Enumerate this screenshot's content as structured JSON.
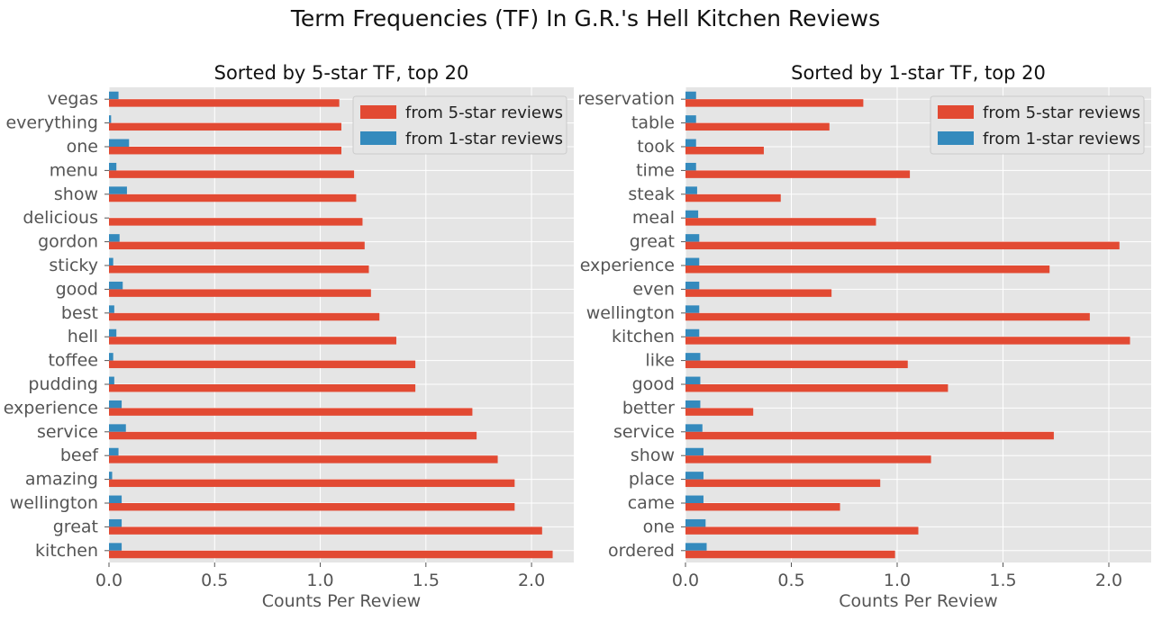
{
  "title": "Term Frequencies (TF) In G.R.'s Hell Kitchen Reviews",
  "colors": {
    "five_star": "#E24A33",
    "one_star": "#348ABD",
    "panel_bg": "#E5E5E5",
    "grid": "#FFFFFF",
    "text": "#555555"
  },
  "chart_data": [
    {
      "type": "bar",
      "orientation": "horizontal",
      "title": "Sorted by 5-star TF, top 20",
      "xlabel": "Counts Per Review",
      "ylabel": "",
      "xlim": [
        0,
        2.2
      ],
      "xticks": [
        "0.0",
        "0.5",
        "1.0",
        "1.5",
        "2.0"
      ],
      "grid": true,
      "legend_position": "upper right",
      "categories": [
        "vegas",
        "everything",
        "one",
        "menu",
        "show",
        "delicious",
        "gordon",
        "sticky",
        "good",
        "best",
        "hell",
        "toffee",
        "pudding",
        "experience",
        "service",
        "beef",
        "amazing",
        "wellington",
        "great",
        "kitchen"
      ],
      "series": [
        {
          "name": "from 5-star reviews",
          "values": [
            1.09,
            1.1,
            1.1,
            1.16,
            1.17,
            1.2,
            1.21,
            1.23,
            1.24,
            1.28,
            1.36,
            1.45,
            1.45,
            1.72,
            1.74,
            1.84,
            1.92,
            1.92,
            2.05,
            2.1
          ]
        },
        {
          "name": "from 1-star reviews",
          "values": [
            0.045,
            0.01,
            0.095,
            0.035,
            0.085,
            0.0,
            0.05,
            0.02,
            0.065,
            0.025,
            0.035,
            0.02,
            0.025,
            0.06,
            0.08,
            0.045,
            0.015,
            0.06,
            0.06,
            0.06
          ]
        }
      ]
    },
    {
      "type": "bar",
      "orientation": "horizontal",
      "title": "Sorted by 1-star TF, top 20",
      "xlabel": "Counts Per Review",
      "ylabel": "",
      "xlim": [
        0,
        2.2
      ],
      "xticks": [
        "0.0",
        "0.5",
        "1.0",
        "1.5",
        "2.0"
      ],
      "grid": true,
      "legend_position": "upper right",
      "categories": [
        "reservation",
        "table",
        "took",
        "time",
        "steak",
        "meal",
        "great",
        "experience",
        "even",
        "wellington",
        "kitchen",
        "like",
        "good",
        "better",
        "service",
        "show",
        "place",
        "came",
        "one",
        "ordered"
      ],
      "series": [
        {
          "name": "from 5-star reviews",
          "values": [
            0.84,
            0.68,
            0.37,
            1.06,
            0.45,
            0.9,
            2.05,
            1.72,
            0.69,
            1.91,
            2.1,
            1.05,
            1.24,
            0.32,
            1.74,
            1.16,
            0.92,
            0.73,
            1.1,
            0.99
          ]
        },
        {
          "name": "from 1-star reviews",
          "values": [
            0.05,
            0.05,
            0.05,
            0.05,
            0.055,
            0.06,
            0.065,
            0.065,
            0.065,
            0.065,
            0.065,
            0.07,
            0.07,
            0.07,
            0.08,
            0.085,
            0.085,
            0.085,
            0.095,
            0.1
          ]
        }
      ]
    }
  ]
}
